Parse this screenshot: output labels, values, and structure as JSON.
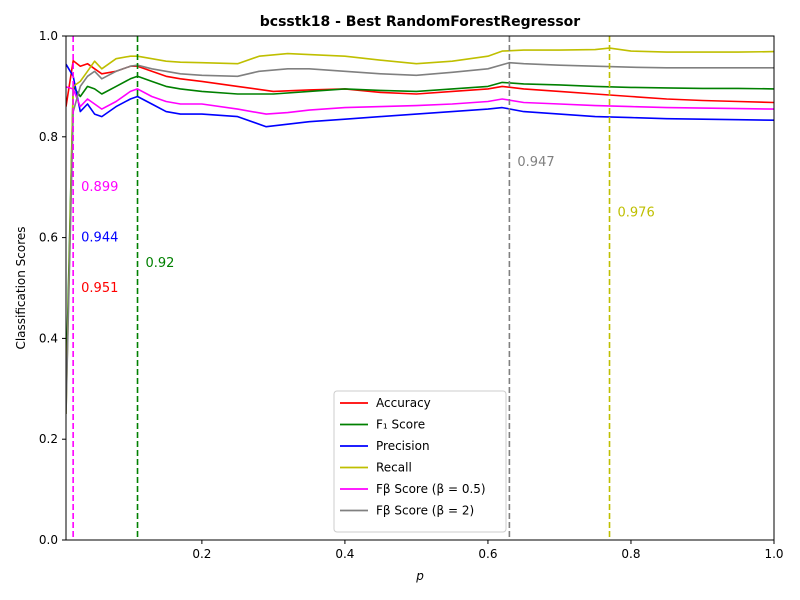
{
  "chart_data": {
    "type": "line",
    "title": "bcsstk18 - Best RandomForestRegressor",
    "xlabel": "p",
    "ylabel": "Classification Scores",
    "xlim": [
      0.01,
      1.0
    ],
    "ylim": [
      0.0,
      1.0
    ],
    "x_ticks": [
      0.2,
      0.4,
      0.6,
      0.8,
      1.0
    ],
    "x_tick_labels": [
      "0.2",
      "0.4",
      "0.6",
      "0.8",
      "1.0"
    ],
    "y_ticks": [
      0.0,
      0.2,
      0.4,
      0.6,
      0.8,
      1.0
    ],
    "y_tick_labels": [
      "0.0",
      "0.2",
      "0.4",
      "0.6",
      "0.8",
      "1.0"
    ],
    "grid": false,
    "legend_position": "lower-center",
    "series": [
      {
        "name": "Accuracy",
        "color": "#ff0000",
        "x": [
          0.01,
          0.02,
          0.03,
          0.04,
          0.05,
          0.06,
          0.08,
          0.1,
          0.11,
          0.13,
          0.15,
          0.17,
          0.2,
          0.25,
          0.3,
          0.35,
          0.4,
          0.45,
          0.5,
          0.55,
          0.6,
          0.62,
          0.65,
          0.7,
          0.75,
          0.8,
          0.85,
          0.9,
          0.95,
          1.0
        ],
        "y": [
          0.86,
          0.951,
          0.94,
          0.945,
          0.935,
          0.925,
          0.93,
          0.94,
          0.94,
          0.93,
          0.92,
          0.915,
          0.91,
          0.9,
          0.89,
          0.893,
          0.895,
          0.888,
          0.885,
          0.89,
          0.895,
          0.9,
          0.895,
          0.89,
          0.885,
          0.88,
          0.875,
          0.872,
          0.87,
          0.868
        ]
      },
      {
        "name": "F₁ Score",
        "color": "#008000",
        "x": [
          0.01,
          0.02,
          0.03,
          0.04,
          0.05,
          0.06,
          0.08,
          0.1,
          0.11,
          0.13,
          0.15,
          0.17,
          0.2,
          0.25,
          0.3,
          0.35,
          0.4,
          0.45,
          0.5,
          0.55,
          0.6,
          0.62,
          0.65,
          0.7,
          0.75,
          0.8,
          0.85,
          0.9,
          0.95,
          1.0
        ],
        "y": [
          0.3,
          0.9,
          0.88,
          0.9,
          0.895,
          0.885,
          0.9,
          0.915,
          0.92,
          0.91,
          0.9,
          0.895,
          0.89,
          0.885,
          0.885,
          0.89,
          0.895,
          0.892,
          0.89,
          0.895,
          0.9,
          0.908,
          0.905,
          0.903,
          0.9,
          0.898,
          0.897,
          0.896,
          0.896,
          0.895
        ]
      },
      {
        "name": "Precision",
        "color": "#0000ff",
        "x": [
          0.01,
          0.02,
          0.03,
          0.04,
          0.05,
          0.06,
          0.08,
          0.1,
          0.11,
          0.13,
          0.15,
          0.17,
          0.2,
          0.25,
          0.29,
          0.32,
          0.35,
          0.4,
          0.45,
          0.5,
          0.55,
          0.6,
          0.62,
          0.65,
          0.7,
          0.75,
          0.8,
          0.85,
          0.9,
          0.95,
          1.0
        ],
        "y": [
          0.944,
          0.92,
          0.85,
          0.865,
          0.845,
          0.84,
          0.86,
          0.875,
          0.88,
          0.865,
          0.85,
          0.845,
          0.845,
          0.84,
          0.82,
          0.825,
          0.83,
          0.835,
          0.84,
          0.845,
          0.85,
          0.855,
          0.858,
          0.85,
          0.845,
          0.84,
          0.838,
          0.836,
          0.835,
          0.834,
          0.833
        ]
      },
      {
        "name": "Recall",
        "color": "#bfbf00",
        "x": [
          0.01,
          0.02,
          0.03,
          0.04,
          0.05,
          0.06,
          0.08,
          0.1,
          0.11,
          0.13,
          0.15,
          0.17,
          0.2,
          0.25,
          0.28,
          0.32,
          0.35,
          0.4,
          0.45,
          0.5,
          0.55,
          0.6,
          0.62,
          0.65,
          0.7,
          0.75,
          0.77,
          0.8,
          0.85,
          0.9,
          0.95,
          1.0
        ],
        "y": [
          0.25,
          0.9,
          0.91,
          0.93,
          0.95,
          0.935,
          0.955,
          0.96,
          0.96,
          0.955,
          0.95,
          0.948,
          0.947,
          0.945,
          0.96,
          0.965,
          0.963,
          0.96,
          0.952,
          0.945,
          0.95,
          0.96,
          0.97,
          0.972,
          0.972,
          0.973,
          0.976,
          0.97,
          0.968,
          0.968,
          0.968,
          0.969
        ]
      },
      {
        "name": "F<sub>β</sub> Score (β=0.5)",
        "label_text": "Score (β = 0.5)",
        "color": "#ff00ff",
        "x": [
          0.01,
          0.02,
          0.03,
          0.04,
          0.05,
          0.06,
          0.08,
          0.1,
          0.11,
          0.13,
          0.15,
          0.17,
          0.2,
          0.25,
          0.29,
          0.32,
          0.35,
          0.4,
          0.45,
          0.5,
          0.55,
          0.6,
          0.62,
          0.65,
          0.7,
          0.75,
          0.8,
          0.85,
          0.9,
          0.95,
          1.0
        ],
        "y": [
          0.899,
          0.895,
          0.86,
          0.875,
          0.865,
          0.855,
          0.87,
          0.89,
          0.895,
          0.88,
          0.87,
          0.865,
          0.865,
          0.855,
          0.845,
          0.848,
          0.853,
          0.858,
          0.86,
          0.862,
          0.865,
          0.87,
          0.875,
          0.868,
          0.865,
          0.862,
          0.86,
          0.858,
          0.857,
          0.856,
          0.855
        ]
      },
      {
        "name": "F<sub>β</sub> Score (β=2)",
        "label_text": "Score (β = 2)",
        "color": "#808080",
        "x": [
          0.01,
          0.02,
          0.03,
          0.04,
          0.05,
          0.06,
          0.08,
          0.1,
          0.11,
          0.13,
          0.15,
          0.17,
          0.2,
          0.25,
          0.28,
          0.32,
          0.35,
          0.4,
          0.45,
          0.5,
          0.55,
          0.6,
          0.63,
          0.65,
          0.7,
          0.75,
          0.8,
          0.85,
          0.9,
          0.95,
          1.0
        ],
        "y": [
          0.25,
          0.85,
          0.9,
          0.92,
          0.93,
          0.915,
          0.93,
          0.94,
          0.942,
          0.935,
          0.93,
          0.925,
          0.922,
          0.92,
          0.93,
          0.935,
          0.935,
          0.93,
          0.925,
          0.922,
          0.928,
          0.935,
          0.947,
          0.945,
          0.942,
          0.94,
          0.938,
          0.937,
          0.937,
          0.937,
          0.937
        ]
      }
    ],
    "vlines": [
      {
        "x": 0.02,
        "color": "#ff00ff"
      },
      {
        "x": 0.11,
        "color": "#008000"
      },
      {
        "x": 0.63,
        "color": "#808080"
      },
      {
        "x": 0.77,
        "color": "#bfbf00"
      }
    ],
    "annotations": [
      {
        "text": "0.899",
        "color": "#ff00ff",
        "x": 0.02,
        "y": 0.7
      },
      {
        "text": "0.944",
        "color": "#0000ff",
        "x": 0.02,
        "y": 0.6
      },
      {
        "text": "0.951",
        "color": "#ff0000",
        "x": 0.02,
        "y": 0.5
      },
      {
        "text": "0.92",
        "color": "#008000",
        "x": 0.11,
        "y": 0.55
      },
      {
        "text": "0.947",
        "color": "#808080",
        "x": 0.63,
        "y": 0.75
      },
      {
        "text": "0.976",
        "color": "#bfbf00",
        "x": 0.77,
        "y": 0.65
      }
    ],
    "legend": [
      {
        "label": "Accuracy",
        "color": "#ff0000"
      },
      {
        "label": "F₁ Score",
        "color": "#008000"
      },
      {
        "label": "Precision",
        "color": "#0000ff"
      },
      {
        "label": "Recall",
        "color": "#bfbf00"
      },
      {
        "label": "Fβ Score (β = 0.5)",
        "color": "#ff00ff"
      },
      {
        "label": "Fβ Score (β = 2)",
        "color": "#808080"
      }
    ]
  }
}
